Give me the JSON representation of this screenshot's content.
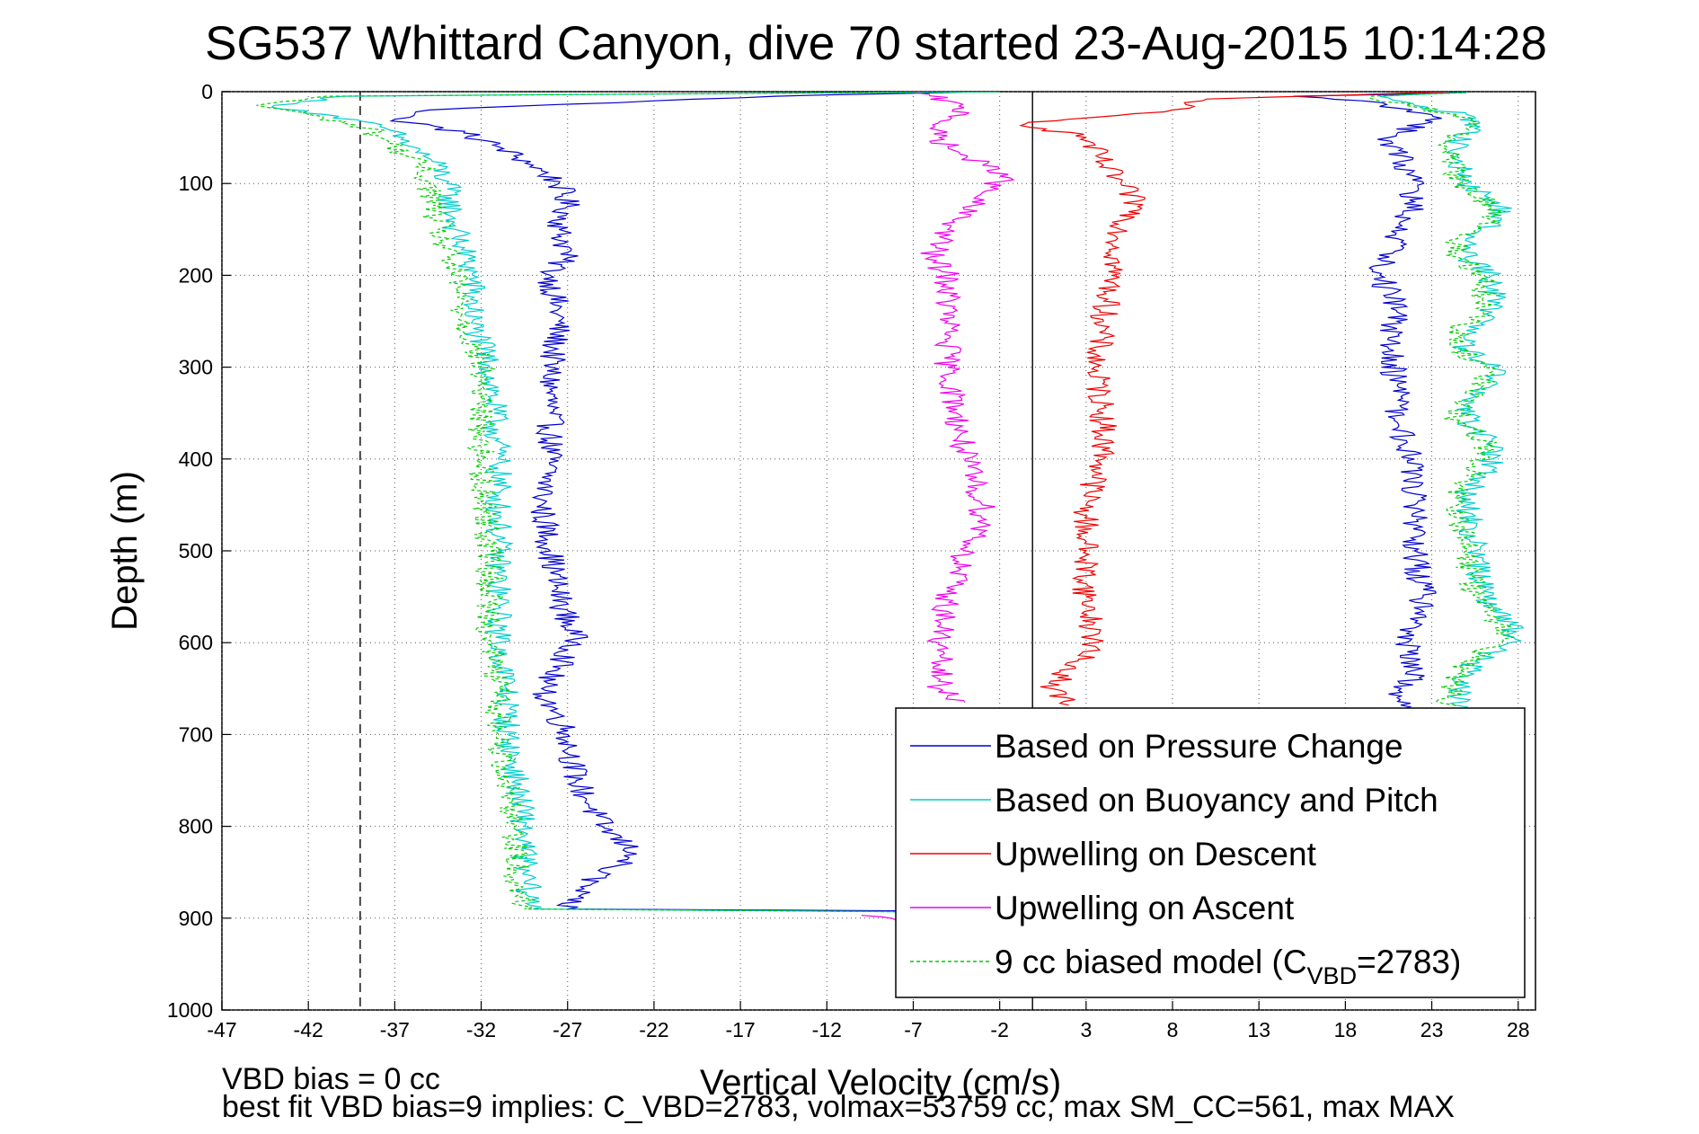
{
  "chart_data": {
    "type": "line",
    "title": "SG537 Whittard Canyon, dive 70 started 23-Aug-2015 10:14:28",
    "xlabel": "Vertical Velocity (cm/s)",
    "ylabel": "Depth (m)",
    "xlim": [
      -47,
      29
    ],
    "ylim": [
      0,
      1000
    ],
    "y_reversed": true,
    "grid": true,
    "legend_position": "bottom-right",
    "x_ticks": [
      "-47",
      "-42",
      "-37",
      "-32",
      "-27",
      "-22",
      "-17",
      "-12",
      "-7",
      "-2",
      "3",
      "8",
      "13",
      "18",
      "23",
      "28"
    ],
    "y_ticks": [
      "0",
      "100",
      "200",
      "300",
      "400",
      "500",
      "600",
      "700",
      "800",
      "900",
      "1000"
    ],
    "ref_lines": [
      {
        "x": -39,
        "style": "dashed",
        "color": "#000000"
      },
      {
        "x": -0.1,
        "style": "solid",
        "color": "#000000"
      }
    ],
    "series": [
      {
        "name": "Based on Pressure Change",
        "color": "#0000cc",
        "style": "solid",
        "segments": [
          {
            "y": [
              0,
              5,
              10,
              20,
              30,
              45,
              60,
              80,
              100,
              125,
              150,
              175,
              200,
              250,
              300,
              350,
              400,
              450,
              500,
              550,
              600,
              650,
              700,
              750,
              800,
              830,
              850,
              880,
              890,
              892
            ],
            "x": [
              -3,
              -15,
              -22,
              -35,
              -37,
              -33,
              -31,
              -29,
              -27.5,
              -27,
              -27.5,
              -27,
              -28,
              -27.5,
              -28,
              -28,
              -28,
              -28.5,
              -28,
              -27.5,
              -26.5,
              -28.5,
              -27,
              -26.5,
              -25,
              -23,
              -25,
              -27,
              -27,
              -8
            ]
          },
          {
            "y": [
              892,
              880,
              860,
              840,
              810,
              780,
              740,
              700,
              660,
              630,
              600,
              550,
              500,
              450,
              400,
              360,
              320,
              280,
              240,
              200,
              160,
              120,
              80,
              50,
              35,
              25,
              18,
              10,
              5,
              1
            ],
            "x": [
              21,
              21,
              21.5,
              22,
              21.5,
              22,
              22,
              21,
              21,
              22,
              21.5,
              22.5,
              22,
              22,
              22,
              21,
              21,
              20.5,
              21,
              20,
              21,
              22,
              21.5,
              20.5,
              22.5,
              23,
              21,
              19,
              15,
              25
            ]
          }
        ]
      },
      {
        "name": "Based on Buoyancy and Pitch",
        "color": "#00cccc",
        "style": "solid",
        "segments": [
          {
            "y": [
              0,
              5,
              15,
              25,
              40,
              60,
              80,
              100,
              150,
              200,
              250,
              300,
              400,
              500,
              600,
              650,
              700,
              750,
              800,
              850,
              890,
              893
            ],
            "x": [
              -2,
              -40,
              -44,
              -41,
              -37.5,
              -36,
              -34.5,
              -34,
              -33.5,
              -32.5,
              -32.5,
              -31.5,
              -31,
              -31,
              -31,
              -30.5,
              -30.5,
              -30,
              -29.5,
              -29.5,
              -29,
              -8
            ]
          },
          {
            "y": [
              893,
              880,
              850,
              800,
              750,
              700,
              650,
              620,
              600,
              580,
              550,
              500,
              450,
              440,
              400,
              380,
              360,
              340,
              320,
              300,
              280,
              260,
              240,
              200,
              180,
              160,
              140,
              125,
              100,
              70,
              50,
              40,
              25,
              15,
              5,
              1
            ],
            "x": [
              24,
              24,
              24.5,
              24.5,
              24.5,
              24.5,
              24.5,
              25.5,
              27.5,
              27.5,
              26,
              25.5,
              25,
              25,
              26.5,
              26.5,
              25,
              25,
              26.5,
              26.5,
              25,
              25,
              26.5,
              26.5,
              25,
              25,
              27,
              27,
              25,
              24.5,
              24.5,
              25.5,
              25,
              22,
              20,
              25
            ]
          }
        ]
      },
      {
        "name": "Upwelling on Descent",
        "color": "#ee0000",
        "style": "solid",
        "segments": [
          {
            "y": [
              0,
              8,
              20,
              30,
              35,
              50,
              80,
              100,
              125,
              150,
              200,
              250,
              300,
              350,
              400,
              450,
              500,
              550,
              600,
              650,
              668
            ],
            "x": [
              24,
              10,
              8,
              2,
              -0.5,
              3,
              4,
              5,
              6,
              5,
              4.5,
              4,
              3.5,
              4,
              4,
              3,
              3,
              3,
              3.5,
              1,
              2
            ]
          }
        ]
      },
      {
        "name": "Upwelling on Ascent",
        "color": "#ee00ee",
        "style": "solid",
        "segments": [
          {
            "y": [
              1,
              10,
              25,
              40,
              60,
              80,
              90,
              110,
              150,
              180,
              200,
              250,
              300,
              350,
              400,
              450,
              480,
              500,
              550,
              600,
              650,
              665
            ],
            "x": [
              -7,
              -5,
              -4,
              -6,
              -5,
              -3,
              -1.5,
              -3,
              -5,
              -6,
              -5,
              -5,
              -5,
              -4.5,
              -4,
              -3,
              -3,
              -4,
              -5,
              -5.5,
              -5.5,
              -4
            ]
          },
          {
            "y": [
              897,
              902
            ],
            "x": [
              -10,
              -8
            ]
          }
        ]
      },
      {
        "name": "9 cc biased model (C",
        "name_sub": "VBD",
        "name_suffix": "=2783)",
        "color": "#00cc00",
        "style": "dashed",
        "segments": [
          {
            "y": [
              0,
              5,
              15,
              25,
              40,
              60,
              80,
              100,
              150,
              200,
              250,
              300,
              400,
              500,
              600,
              650,
              700,
              750,
              800,
              850,
              890,
              893
            ],
            "x": [
              -2,
              -41,
              -45,
              -42,
              -38.5,
              -37,
              -35.5,
              -35,
              -34.5,
              -33.5,
              -33,
              -32,
              -32,
              -31.5,
              -31.5,
              -31,
              -31,
              -30.5,
              -30,
              -30,
              -29.5,
              -8
            ]
          },
          {
            "y": [
              893,
              880,
              850,
              800,
              750,
              700,
              650,
              620,
              600,
              580,
              550,
              500,
              450,
              440,
              400,
              380,
              360,
              340,
              320,
              300,
              280,
              260,
              240,
              200,
              180,
              160,
              140,
              125,
              100,
              70,
              50,
              40,
              25,
              15,
              5,
              1
            ],
            "x": [
              23.5,
              23.5,
              24,
              24,
              24,
              24,
              24,
              25,
              27,
              27,
              25.5,
              25,
              24.5,
              24.5,
              26,
              26,
              24.5,
              24.5,
              26,
              26,
              24.5,
              24.5,
              26,
              26,
              24.5,
              24.5,
              26.5,
              26.5,
              24.5,
              24,
              24,
              25,
              24.5,
              21.5,
              19.5,
              25
            ]
          }
        ]
      }
    ],
    "annotations": [
      "VBD bias = 0 cc",
      "best fit VBD bias=9 implies: C_VBD=2783, volmax=53759 cc, max SM_CC=561, max MAX"
    ]
  }
}
